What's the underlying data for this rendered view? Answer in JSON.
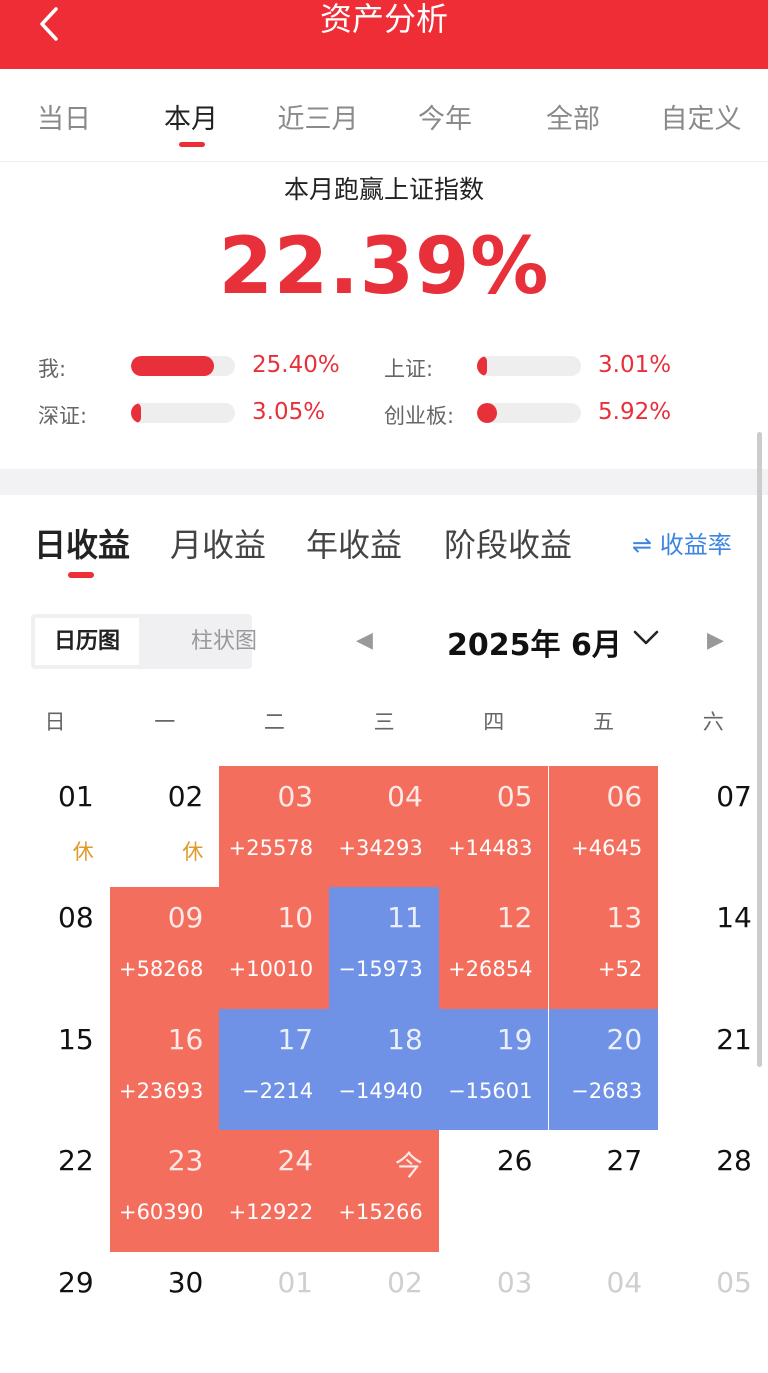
{
  "header": {
    "title": "资产分析"
  },
  "period_tabs": [
    "当日",
    "本月",
    "近三月",
    "今年",
    "全部",
    "自定义"
  ],
  "summary": {
    "label": "本月跑赢上证指数",
    "value": "22.39%"
  },
  "comparisons": [
    {
      "label": "我:",
      "value": "25.40%",
      "fraction": 0.8
    },
    {
      "label": "上证:",
      "value": "3.01%",
      "fraction": 0.09
    },
    {
      "label": "深证:",
      "value": "3.05%",
      "fraction": 0.09
    },
    {
      "label": "创业板:",
      "value": "5.92%",
      "fraction": 0.19
    }
  ],
  "income_tabs": [
    "日收益",
    "月收益",
    "年收益",
    "阶段收益"
  ],
  "rate_link": "收益率",
  "view_toggle": [
    "日历图",
    "柱状图"
  ],
  "month_title": "2025年 6月",
  "weekdays": [
    "日",
    "一",
    "二",
    "三",
    "四",
    "五",
    "六"
  ],
  "colors": {
    "positive": "#f46e5e",
    "negative": "#6f91e6",
    "accent": "#ee2d36",
    "rest": "#e09a2a"
  },
  "calendar": [
    [
      {
        "d": "01",
        "t": "rest",
        "v": "休"
      },
      {
        "d": "02",
        "t": "rest",
        "v": "休"
      },
      {
        "d": "03",
        "t": "pos",
        "v": "+25578"
      },
      {
        "d": "04",
        "t": "pos",
        "v": "+34293"
      },
      {
        "d": "05",
        "t": "pos",
        "v": "+14483"
      },
      {
        "d": "06",
        "t": "pos",
        "v": "+4645"
      },
      {
        "d": "07",
        "t": "none",
        "v": ""
      }
    ],
    [
      {
        "d": "08",
        "t": "none",
        "v": ""
      },
      {
        "d": "09",
        "t": "pos",
        "v": "+58268"
      },
      {
        "d": "10",
        "t": "pos",
        "v": "+10010"
      },
      {
        "d": "11",
        "t": "neg",
        "v": "−15973"
      },
      {
        "d": "12",
        "t": "pos",
        "v": "+26854"
      },
      {
        "d": "13",
        "t": "pos",
        "v": "+52"
      },
      {
        "d": "14",
        "t": "none",
        "v": ""
      }
    ],
    [
      {
        "d": "15",
        "t": "none",
        "v": ""
      },
      {
        "d": "16",
        "t": "pos",
        "v": "+23693"
      },
      {
        "d": "17",
        "t": "neg",
        "v": "−2214"
      },
      {
        "d": "18",
        "t": "neg",
        "v": "−14940"
      },
      {
        "d": "19",
        "t": "neg",
        "v": "−15601"
      },
      {
        "d": "20",
        "t": "neg",
        "v": "−2683"
      },
      {
        "d": "21",
        "t": "none",
        "v": ""
      }
    ],
    [
      {
        "d": "22",
        "t": "none",
        "v": ""
      },
      {
        "d": "23",
        "t": "pos",
        "v": "+60390"
      },
      {
        "d": "24",
        "t": "pos",
        "v": "+12922"
      },
      {
        "d": "今",
        "t": "pos",
        "v": "+15266"
      },
      {
        "d": "26",
        "t": "none",
        "v": ""
      },
      {
        "d": "27",
        "t": "none",
        "v": ""
      },
      {
        "d": "28",
        "t": "none",
        "v": ""
      }
    ],
    [
      {
        "d": "29",
        "t": "none",
        "v": ""
      },
      {
        "d": "30",
        "t": "none",
        "v": ""
      },
      {
        "d": "01",
        "t": "dim",
        "v": ""
      },
      {
        "d": "02",
        "t": "dim",
        "v": ""
      },
      {
        "d": "03",
        "t": "dim",
        "v": ""
      },
      {
        "d": "04",
        "t": "dim",
        "v": ""
      },
      {
        "d": "05",
        "t": "dim",
        "v": ""
      }
    ]
  ]
}
